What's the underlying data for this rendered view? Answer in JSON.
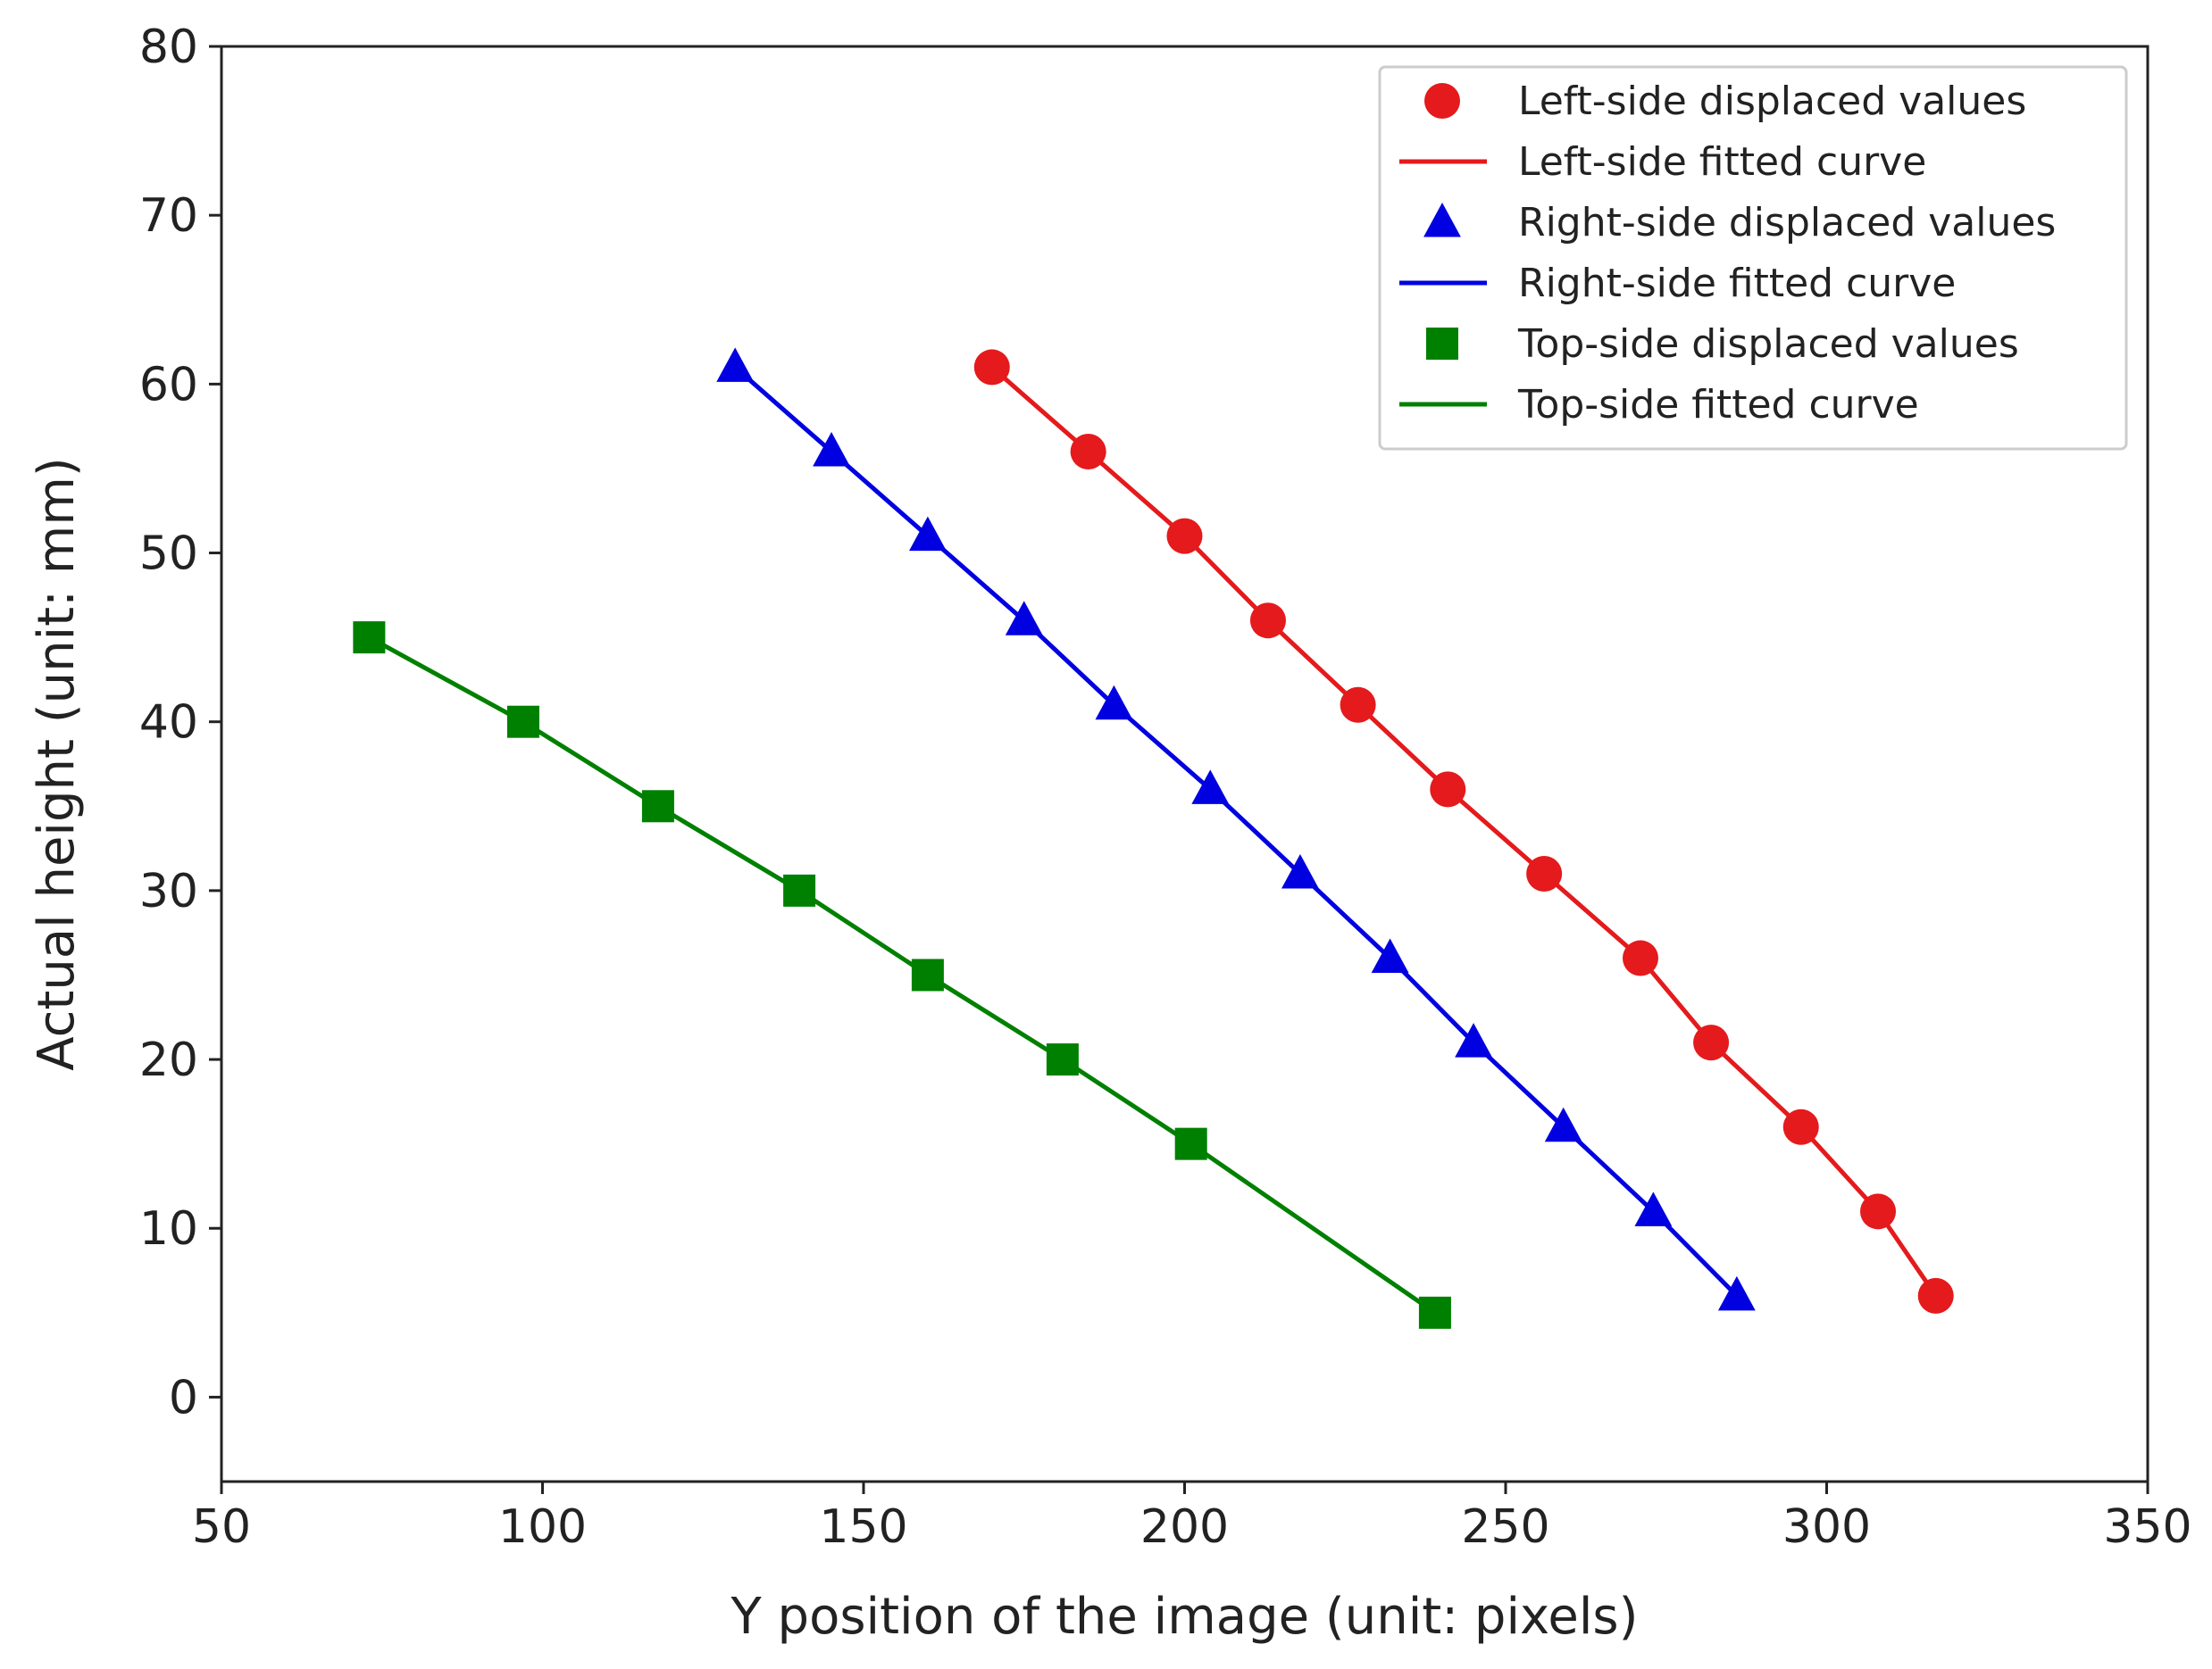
{
  "chart_data": {
    "type": "scatter",
    "title": "",
    "xlabel": "Y position of the image (unit: pixels)",
    "ylabel": "Actual height (unit: mm)",
    "xlim": [
      50,
      350
    ],
    "ylim": [
      -5,
      80
    ],
    "xticks": [
      "50",
      "100",
      "150",
      "200",
      "250",
      "300",
      "350"
    ],
    "yticks": [
      "0",
      "10",
      "20",
      "30",
      "40",
      "50",
      "60",
      "70",
      "80"
    ],
    "grid": false,
    "legend_position": "top-right",
    "legend": [
      "Left-side displaced values",
      "Left-side fitted curve",
      "Right-side displaced values",
      "Right-side fitted curve",
      "Top-side displaced values",
      "Top-side fitted curve"
    ],
    "series": [
      {
        "name": "Left-side displaced values",
        "kind": "markers",
        "marker": "circle",
        "color": "#e41a1c",
        "x": [
          170,
          185,
          200,
          213,
          227,
          241,
          256,
          271,
          282,
          296,
          308,
          317
        ],
        "y": [
          61,
          56,
          51,
          46,
          41,
          36,
          31,
          26,
          21,
          16,
          11,
          6
        ]
      },
      {
        "name": "Left-side fitted curve",
        "kind": "line",
        "color": "#e41a1c",
        "x": [
          170,
          185,
          200,
          213,
          227,
          241,
          256,
          271,
          282,
          296,
          308,
          317
        ],
        "y": [
          61,
          56,
          51,
          46,
          41,
          36,
          31,
          26,
          21,
          16,
          11,
          6
        ]
      },
      {
        "name": "Right-side displaced values",
        "kind": "markers",
        "marker": "triangle",
        "color": "#0000e0",
        "x": [
          130,
          145,
          160,
          175,
          189,
          204,
          218,
          232,
          245,
          259,
          273,
          286
        ],
        "y": [
          61,
          56,
          51,
          46,
          41,
          36,
          31,
          26,
          21,
          16,
          11,
          6
        ]
      },
      {
        "name": "Right-side fitted curve",
        "kind": "line",
        "color": "#0000e0",
        "x": [
          130,
          145,
          160,
          175,
          189,
          204,
          218,
          232,
          245,
          259,
          273,
          286
        ],
        "y": [
          61,
          56,
          51,
          46,
          41,
          36,
          31,
          26,
          21,
          16,
          11,
          6
        ]
      },
      {
        "name": "Top-side displaced values",
        "kind": "markers",
        "marker": "square",
        "color": "#008000",
        "x": [
          73,
          97,
          118,
          140,
          160,
          181,
          201,
          239
        ],
        "y": [
          45,
          40,
          35,
          30,
          25,
          20,
          15,
          5
        ]
      },
      {
        "name": "Top-side fitted curve",
        "kind": "line",
        "color": "#008000",
        "x": [
          73,
          97,
          118,
          140,
          160,
          181,
          201,
          239
        ],
        "y": [
          45,
          40,
          35,
          30,
          25,
          20,
          15,
          5
        ]
      }
    ]
  }
}
